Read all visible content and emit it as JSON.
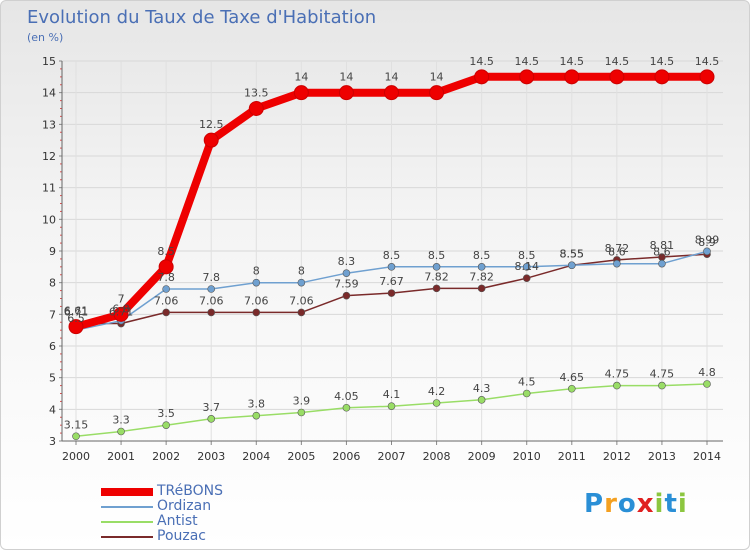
{
  "header": {
    "title": "Evolution du Taux de Taxe d'Habitation",
    "subtitle": "(en %)"
  },
  "logo": {
    "letters": [
      "P",
      "r",
      "o",
      "x",
      "i",
      "t",
      "i"
    ],
    "colors": [
      "#2a8fd6",
      "#f4a020",
      "#2a8fd6",
      "#e02020",
      "#8cc63f",
      "#2a8fd6",
      "#8cc63f"
    ]
  },
  "chart_data": {
    "type": "line",
    "title": "Evolution du Taux de Taxe d'Habitation",
    "ylabel": "(en %)",
    "xlabel": "",
    "x": [
      "2000",
      "2001",
      "2002",
      "2003",
      "2004",
      "2005",
      "2006",
      "2007",
      "2008",
      "2009",
      "2010",
      "2011",
      "2012",
      "2013",
      "2014"
    ],
    "ylim": [
      3,
      15
    ],
    "yticks": [
      "3",
      "4",
      "5",
      "6",
      "7",
      "8",
      "9",
      "10",
      "11",
      "12",
      "13",
      "14",
      "15"
    ],
    "legend_position": "bottom-left",
    "series": [
      {
        "name": "TRéBONS",
        "color": "#ee0000",
        "width": 8,
        "marker": 7,
        "values": [
          6.61,
          7,
          8.5,
          12.5,
          13.5,
          14,
          14,
          14,
          14,
          14.5,
          14.5,
          14.5,
          14.5,
          14.5,
          14.5
        ],
        "labels": [
          "6.61",
          "7",
          "8.5",
          "12.5",
          "13.5",
          "14",
          "14",
          "14",
          "14",
          "14.5",
          "14.5",
          "14.5",
          "14.5",
          "14.5",
          "14.5"
        ]
      },
      {
        "name": "Ordizan",
        "color": "#6fa0d0",
        "width": 1.5,
        "marker": 3.5,
        "values": [
          6.5,
          6.8,
          7.8,
          7.8,
          8,
          8,
          8.3,
          8.5,
          8.5,
          8.5,
          8.5,
          8.55,
          8.6,
          8.6,
          8.99
        ],
        "labels": [
          "6.5",
          "6.8",
          "7.8",
          "7.8",
          "8",
          "8",
          "8.3",
          "8.5",
          "8.5",
          "8.5",
          "8.5",
          "8.55",
          "8.6",
          "8.6",
          "8.99"
        ]
      },
      {
        "name": "Antist",
        "color": "#99dd66",
        "width": 1.5,
        "marker": 3.5,
        "values": [
          3.15,
          3.3,
          3.5,
          3.7,
          3.8,
          3.9,
          4.05,
          4.1,
          4.2,
          4.3,
          4.5,
          4.65,
          4.75,
          4.75,
          4.8
        ],
        "labels": [
          "3.15",
          "3.3",
          "3.5",
          "3.7",
          "3.8",
          "3.9",
          "4.05",
          "4.1",
          "4.2",
          "4.3",
          "4.5",
          "4.65",
          "4.75",
          "4.75",
          "4.8"
        ]
      },
      {
        "name": "Pouzac",
        "color": "#7a2a2a",
        "width": 1.5,
        "marker": 3.5,
        "values": [
          6.71,
          6.71,
          7.06,
          7.06,
          7.06,
          7.06,
          7.59,
          7.67,
          7.82,
          7.82,
          8.14,
          8.55,
          8.72,
          8.81,
          8.9
        ],
        "labels": [
          "6.71",
          "6.71",
          "7.06",
          "7.06",
          "7.06",
          "7.06",
          "7.59",
          "7.67",
          "7.82",
          "7.82",
          "8.14",
          "8.55",
          "8.72",
          "8.81",
          "8.9"
        ]
      }
    ]
  }
}
